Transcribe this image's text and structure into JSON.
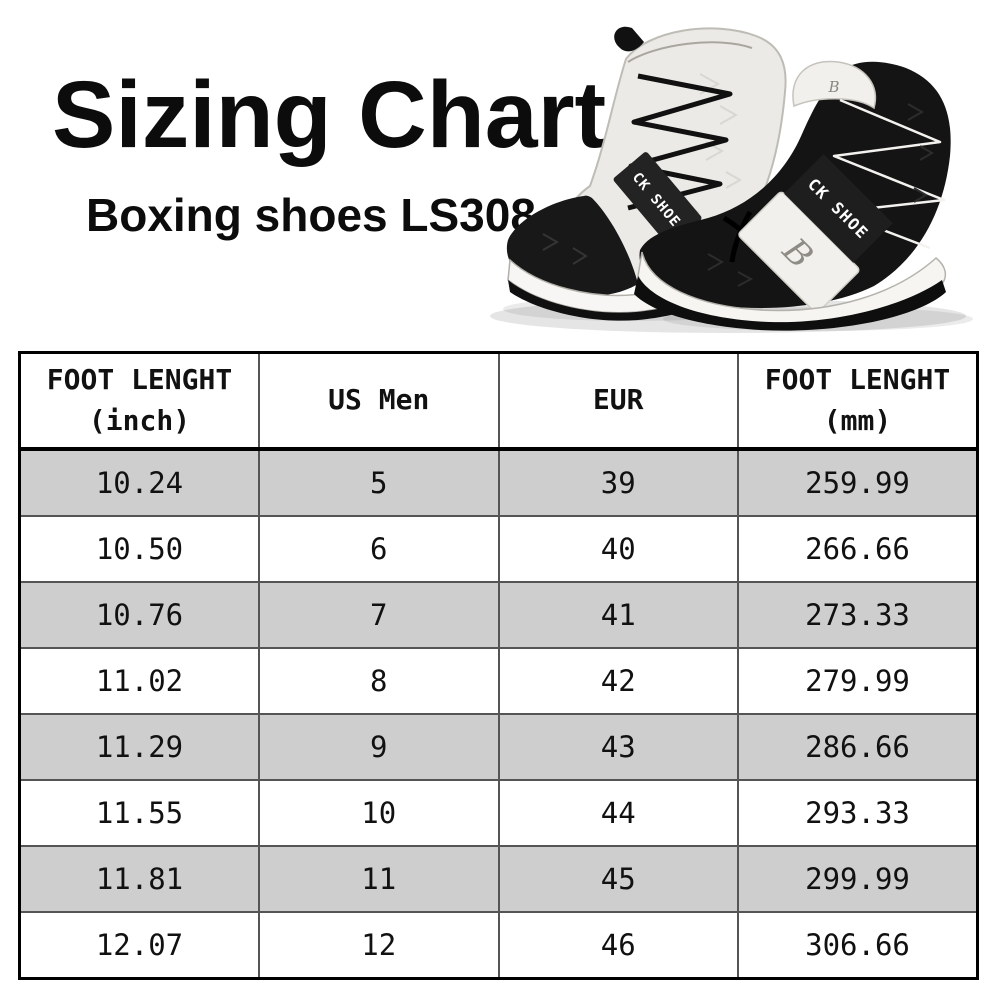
{
  "chart_data": {
    "type": "table",
    "title": "Sizing Chart",
    "subtitle": "Boxing shoes LS308",
    "columns": [
      {
        "label": "FOOT LENGHT",
        "unit": "(inch)"
      },
      {
        "label": "US Men",
        "unit": ""
      },
      {
        "label": "EUR",
        "unit": ""
      },
      {
        "label": "FOOT LENGHT",
        "unit": "(mm)"
      }
    ],
    "rows": [
      [
        "10.24",
        "5",
        "39",
        "259.99"
      ],
      [
        "10.50",
        "6",
        "40",
        "266.66"
      ],
      [
        "10.76",
        "7",
        "41",
        "273.33"
      ],
      [
        "11.02",
        "8",
        "42",
        "279.99"
      ],
      [
        "11.29",
        "9",
        "43",
        "286.66"
      ],
      [
        "11.55",
        "10",
        "44",
        "293.33"
      ],
      [
        "11.81",
        "11",
        "45",
        "299.99"
      ],
      [
        "12.07",
        "12",
        "46",
        "306.66"
      ]
    ],
    "layout": {
      "row_shading": "alternating",
      "first_data_row_shaded": true,
      "grid": "on"
    }
  },
  "product": {
    "strap_label": "CK SHOE",
    "monogram": "B"
  },
  "colors": {
    "row_shade": "#cecece",
    "grid_line": "#555555",
    "outer_border": "#000000",
    "text": "#111111"
  }
}
